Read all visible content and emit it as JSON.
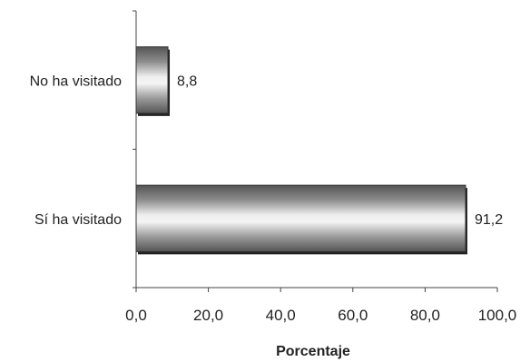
{
  "chart_data": {
    "type": "bar",
    "orientation": "horizontal",
    "categories": [
      "No ha visitado",
      "Sí ha visitado"
    ],
    "values": [
      8.8,
      91.2
    ],
    "value_labels": [
      "8,8",
      "91,2"
    ],
    "xlabel": "Porcentaje",
    "ylabel": "",
    "xlim": [
      0,
      100
    ],
    "x_ticks": [
      0,
      20,
      40,
      60,
      80,
      100
    ],
    "x_tick_labels": [
      "0,0",
      "20,0",
      "40,0",
      "60,0",
      "80,0",
      "100,0"
    ],
    "grid": false,
    "legend": "none",
    "bar_fill": "#bdbdbd",
    "bar_edge": "#333333"
  }
}
